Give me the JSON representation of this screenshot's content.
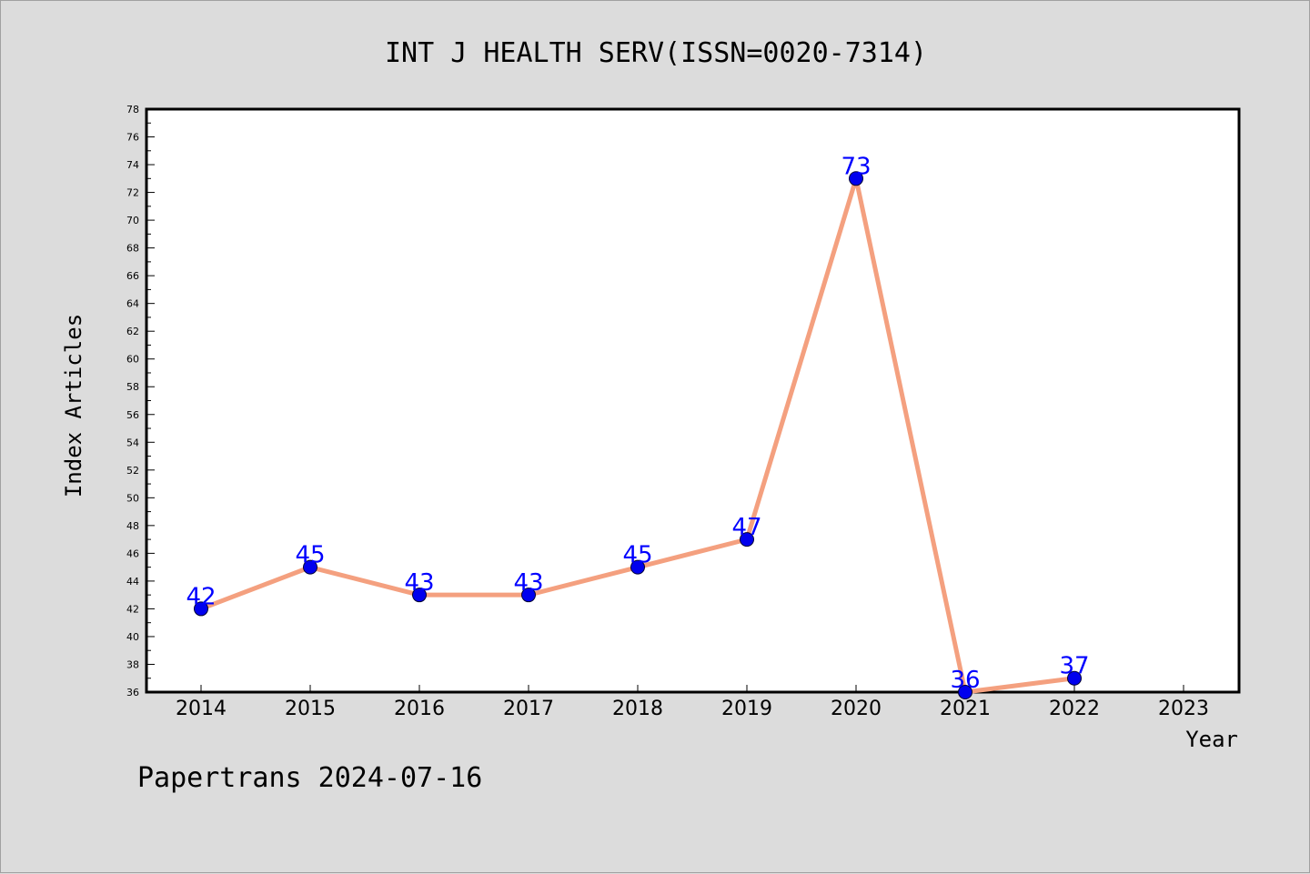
{
  "chart_data": {
    "type": "line",
    "title": "INT J HEALTH SERV(ISSN=0020-7314)",
    "xlabel": "Year",
    "ylabel": "Index Articles",
    "footer": "Papertrans 2024-07-16",
    "x": [
      2014,
      2015,
      2016,
      2017,
      2018,
      2019,
      2020,
      2021,
      2022
    ],
    "x_ticks": [
      2014,
      2015,
      2016,
      2017,
      2018,
      2019,
      2020,
      2021,
      2022,
      2023
    ],
    "values": [
      42,
      45,
      43,
      43,
      45,
      47,
      73,
      36,
      37
    ],
    "ylim": [
      36,
      78
    ],
    "y_tick_step": 2,
    "grid": false,
    "colors": {
      "line": "#f4a07f",
      "marker": "#0000ee",
      "label": "#0000ff",
      "background": "#dcdcdc",
      "plot": "#ffffff"
    }
  }
}
